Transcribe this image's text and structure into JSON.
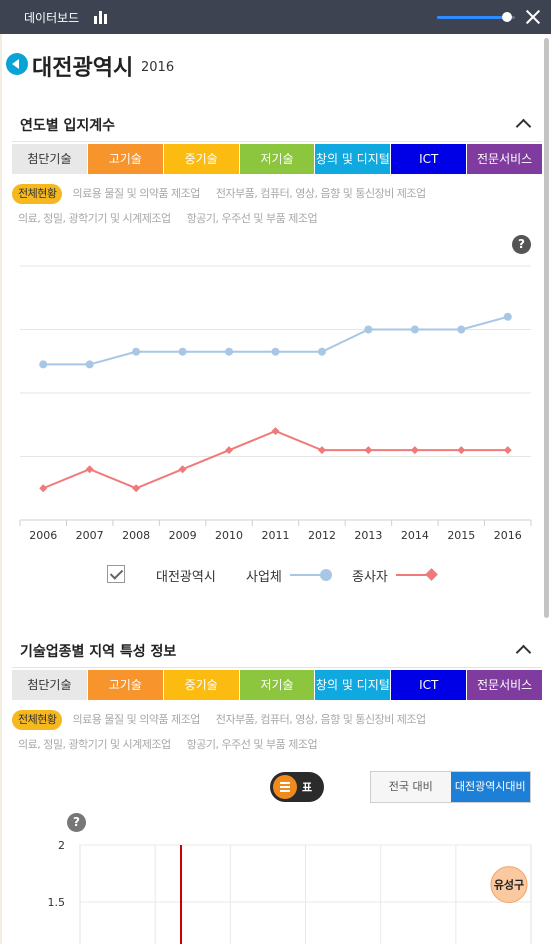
{
  "app": {
    "title": "데이터보드",
    "title_icon": "bar-chart-icon",
    "zoom_slider": {
      "value": 0.9,
      "fill_color": "#2f8bff"
    },
    "close_icon": "close-icon"
  },
  "page": {
    "title": "대전광역시",
    "year": "2016"
  },
  "categories": [
    {
      "label": "첨단기술",
      "color": "#e8e8e8",
      "text_color": "#333333",
      "selected": true
    },
    {
      "label": "고기술",
      "color": "#f7942c"
    },
    {
      "label": "중기술",
      "color": "#fbbb10"
    },
    {
      "label": "저기술",
      "color": "#8cc63f"
    },
    {
      "label": "창의 및 디지털",
      "color": "#0fa9e0"
    },
    {
      "label": "ICT",
      "color": "#0000e6"
    },
    {
      "label": "전문서비스",
      "color": "#7f3b9e"
    }
  ],
  "subfilters": {
    "row1": [
      "전체현황",
      "의료용 물질 및 의약품 제조업",
      "전자부품, 컴퓨터, 영상, 음향 및 통신장비 제조업"
    ],
    "row2": [
      "의료, 정밀, 광학기기 및 시계제조업",
      "항공기, 우주선 및 부품 제조업"
    ],
    "active": "전체현황"
  },
  "section1": {
    "title": "연도별 입지계수",
    "help_label": "?"
  },
  "section2": {
    "title": "기술업종별 지역 특성 정보",
    "help_label": "?",
    "view_toggle": {
      "label": "표",
      "icon": "list-icon"
    },
    "compare_buttons": [
      {
        "label": "전국 대비",
        "active": false
      },
      {
        "label": "대전광역시대비",
        "active": true
      }
    ]
  },
  "chart_data": [
    {
      "type": "line",
      "x": [
        "2006",
        "2007",
        "2008",
        "2009",
        "2010",
        "2011",
        "2012",
        "2013",
        "2014",
        "2015",
        "2016"
      ],
      "gridlines": 5,
      "series": [
        {
          "name": "사업체",
          "color": "#a7c7e4",
          "marker": "circle",
          "values": [
            2.45,
            2.45,
            2.65,
            2.65,
            2.65,
            2.65,
            2.65,
            3.0,
            3.0,
            3.0,
            3.2
          ]
        },
        {
          "name": "종사자",
          "color": "#f07a7a",
          "marker": "diamond",
          "values": [
            0.5,
            0.8,
            0.5,
            0.8,
            1.1,
            1.4,
            1.1,
            1.1,
            1.1,
            1.1,
            1.1
          ]
        }
      ],
      "ylim": [
        0,
        4
      ],
      "legend": {
        "checkbox_label": "대전광역시",
        "placement": "bottom-center"
      },
      "grid": true
    },
    {
      "type": "scatter",
      "yticks": [
        "2",
        "1.5"
      ],
      "ylim": [
        1.3,
        2.0
      ],
      "reference_line_color": "#cc0000",
      "points": [
        {
          "label": "유성구",
          "y": 1.6,
          "color": "#fbc9a0"
        }
      ],
      "grid": true
    }
  ]
}
